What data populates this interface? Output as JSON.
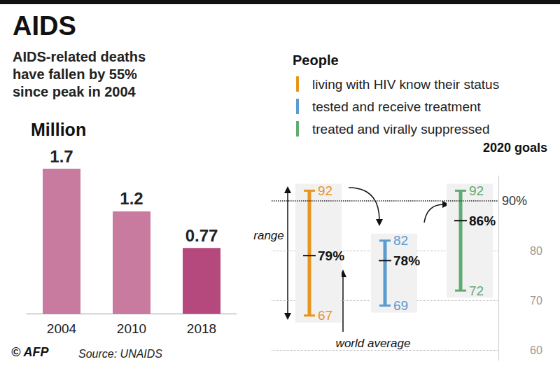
{
  "title": "AIDS",
  "subtitle": "AIDS-related deaths have fallen by 55% since peak in 2004",
  "credit": "© AFP",
  "source": "Source: UNAIDS",
  "chart_data": [
    {
      "type": "bar",
      "ylabel": "Million",
      "categories": [
        "2004",
        "2010",
        "2018"
      ],
      "values": [
        1.7,
        1.2,
        0.77
      ],
      "colors": [
        "#c97b9f",
        "#c97b9f",
        "#b5497d"
      ],
      "ylim": [
        0,
        1.7
      ],
      "data_labels": true,
      "tick_labels": "x"
    },
    {
      "type": "range",
      "title": "People",
      "series": [
        {
          "name": "living with HIV know their status",
          "color": "#e8951f",
          "min": 67,
          "max": 92,
          "average": 79,
          "average_label": "79%"
        },
        {
          "name": "tested and receive treatment",
          "color": "#5a9bd0",
          "min": 69,
          "max": 82,
          "average": 78,
          "average_label": "78%"
        },
        {
          "name": "treated and virally suppressed",
          "color": "#5fab72",
          "min": 72,
          "max": 92,
          "average": 86,
          "average_label": "86%"
        }
      ],
      "ylim": [
        58,
        95
      ],
      "yticks": [
        60,
        70,
        80
      ],
      "grid": true,
      "goal": {
        "title": "2020 goals",
        "value": 90,
        "label": "90%"
      },
      "annotations": [
        "range",
        "world average"
      ],
      "data_labels": true,
      "tick_labels": "y"
    }
  ]
}
